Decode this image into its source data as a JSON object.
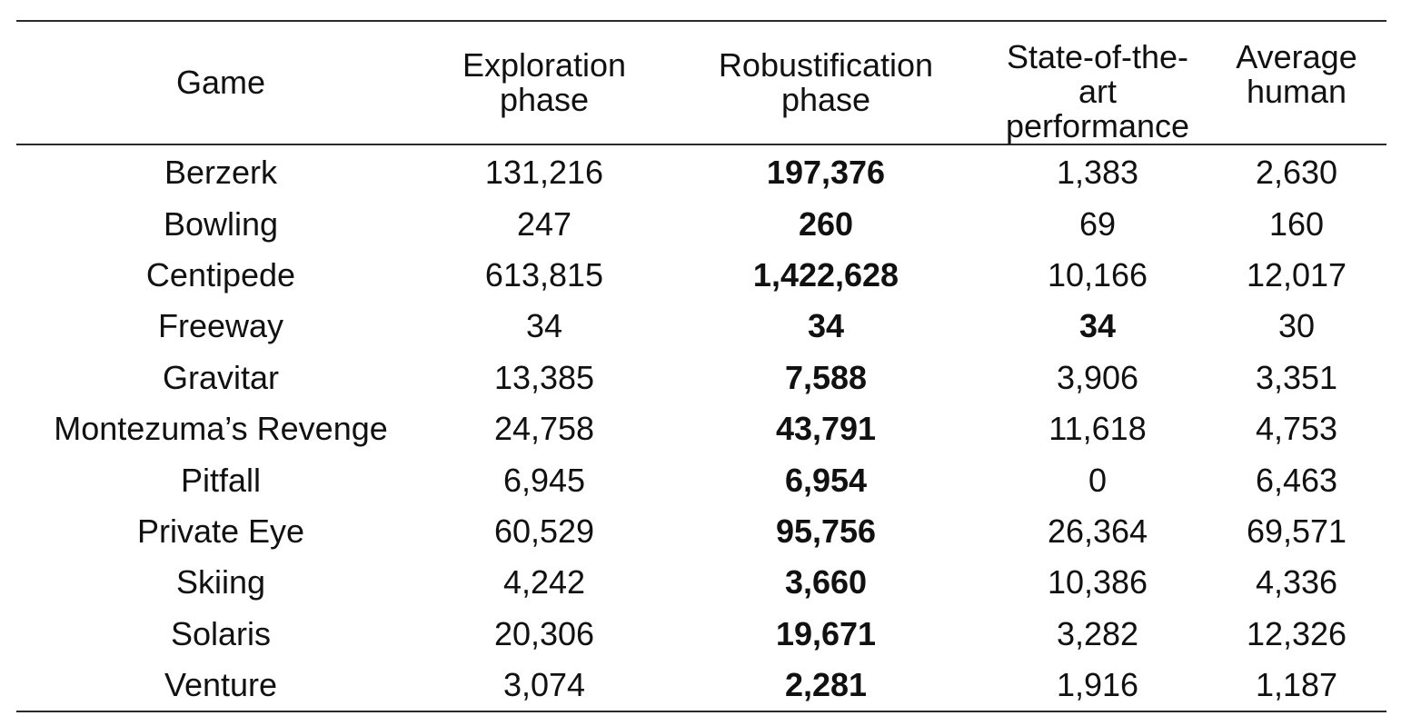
{
  "table": {
    "headers": [
      [
        "Game"
      ],
      [
        "Exploration",
        "phase"
      ],
      [
        "Robustification",
        "phase"
      ],
      [
        "State-of-the-art",
        "performance"
      ],
      [
        "Average",
        "human"
      ]
    ],
    "rows": [
      {
        "game": "Berzerk",
        "exploration": "131,216",
        "robustification": "197,376",
        "sota": "1,383",
        "human": "2,630",
        "bold": [
          "robustification"
        ]
      },
      {
        "game": "Bowling",
        "exploration": "247",
        "robustification": "260",
        "sota": "69",
        "human": "160",
        "bold": [
          "robustification"
        ]
      },
      {
        "game": "Centipede",
        "exploration": "613,815",
        "robustification": "1,422,628",
        "sota": "10,166",
        "human": "12,017",
        "bold": [
          "robustification"
        ]
      },
      {
        "game": "Freeway",
        "exploration": "34",
        "robustification": "34",
        "sota": "34",
        "human": "30",
        "bold": [
          "robustification",
          "sota"
        ]
      },
      {
        "game": "Gravitar",
        "exploration": "13,385",
        "robustification": "7,588",
        "sota": "3,906",
        "human": "3,351",
        "bold": [
          "robustification"
        ]
      },
      {
        "game": "Montezuma’s Revenge",
        "exploration": "24,758",
        "robustification": "43,791",
        "sota": "11,618",
        "human": "4,753",
        "bold": [
          "robustification"
        ]
      },
      {
        "game": "Pitfall",
        "exploration": "6,945",
        "robustification": "6,954",
        "sota": "0",
        "human": "6,463",
        "bold": [
          "robustification"
        ]
      },
      {
        "game": "Private Eye",
        "exploration": "60,529",
        "robustification": "95,756",
        "sota": "26,364",
        "human": "69,571",
        "bold": [
          "robustification"
        ]
      },
      {
        "game": "Skiing",
        "exploration": "4,242",
        "robustification": "3,660",
        "sota": "10,386",
        "human": "4,336",
        "bold": [
          "robustification"
        ]
      },
      {
        "game": "Solaris",
        "exploration": "20,306",
        "robustification": "19,671",
        "sota": "3,282",
        "human": "12,326",
        "bold": [
          "robustification"
        ]
      },
      {
        "game": "Venture",
        "exploration": "3,074",
        "robustification": "2,281",
        "sota": "1,916",
        "human": "1,187",
        "bold": [
          "robustification"
        ]
      }
    ]
  }
}
